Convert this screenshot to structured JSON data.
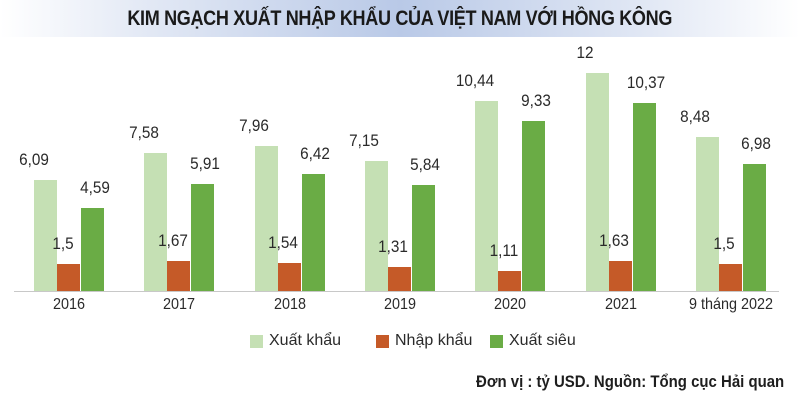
{
  "title": "KIM NGẠCH XUẤT NHẬP KHẨU CỦA VIỆT NAM VỚI HỒNG KÔNG",
  "source": "Đơn vị : tỷ USD. Nguồn: Tổng cục Hải quan",
  "colors": {
    "xuat_khau": "#c5e0b4",
    "nhap_khau": "#c55a28",
    "xuat_sieu": "#6aac45"
  },
  "legend": [
    {
      "label": "Xuất khẩu",
      "color": "#c5e0b4"
    },
    {
      "label": "Nhập khẩu",
      "color": "#c55a28"
    },
    {
      "label": "Xuất siêu",
      "color": "#6aac45"
    }
  ],
  "chart_data": {
    "type": "bar",
    "title": "KIM NGẠCH XUẤT NHẬP KHẨU CỦA VIỆT NAM VỚI HỒNG KÔNG",
    "xlabel": "",
    "ylabel": "tỷ USD",
    "unit": "tỷ USD",
    "categories": [
      "2016",
      "2017",
      "2018",
      "2019",
      "2020",
      "2021",
      "9 tháng 2022"
    ],
    "series": [
      {
        "name": "Xuất khẩu",
        "color": "#c5e0b4",
        "values": [
          6.09,
          7.58,
          7.96,
          7.15,
          10.44,
          12,
          8.48
        ],
        "labels": [
          "6,09",
          "7,58",
          "7,96",
          "7,15",
          "10,44",
          "12",
          "8,48"
        ]
      },
      {
        "name": "Nhập khẩu",
        "color": "#c55a28",
        "values": [
          1.5,
          1.67,
          1.54,
          1.31,
          1.11,
          1.63,
          1.5
        ],
        "labels": [
          "1,5",
          "1,67",
          "1,54",
          "1,31",
          "1,11",
          "1,63",
          "1,5"
        ]
      },
      {
        "name": "Xuất siêu",
        "color": "#6aac45",
        "values": [
          4.59,
          5.91,
          6.42,
          5.84,
          9.33,
          10.37,
          6.98
        ],
        "labels": [
          "4,59",
          "5,91",
          "6,42",
          "5,84",
          "9,33",
          "10,37",
          "6,98"
        ]
      }
    ],
    "ylim": [
      0,
      12
    ],
    "grid": false,
    "y_axis_visible": false,
    "legend_position": "bottom",
    "source_note": "Đơn vị : tỷ USD. Nguồn: Tổng cục Hải quan"
  }
}
